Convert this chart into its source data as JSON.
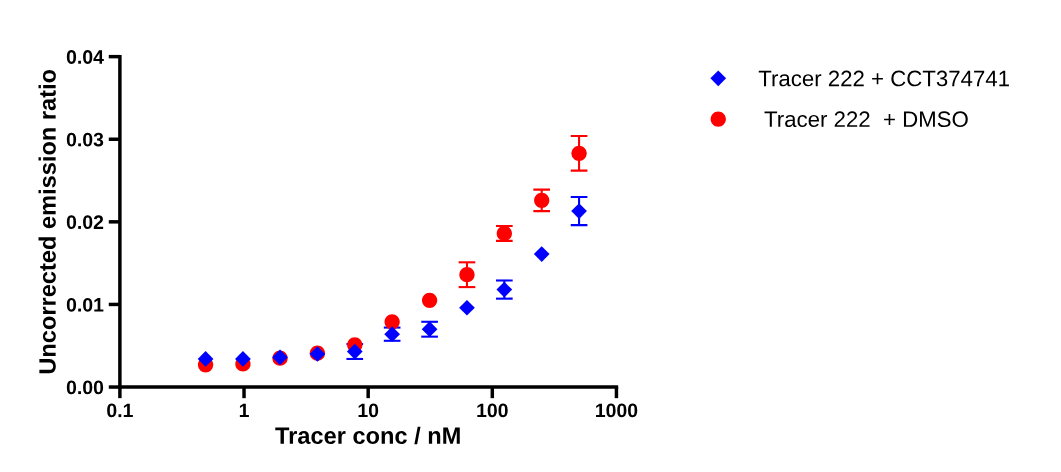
{
  "chart_data": {
    "type": "scatter",
    "xlabel": "Tracer conc / nM",
    "ylabel": "Uncorrected emission ratio",
    "log": "x",
    "x": [
      0.49,
      0.98,
      1.95,
      3.9,
      7.8,
      15.6,
      31.25,
      62.5,
      125,
      250,
      500
    ],
    "series": [
      {
        "name": "Tracer 222 + CCT374741",
        "color": "#0000ff",
        "marker": "diamond",
        "values": [
          0.0034,
          0.0034,
          0.0036,
          0.004,
          0.0043,
          0.0064,
          0.007,
          0.0096,
          0.0118,
          0.0161,
          0.0213
        ],
        "errors": [
          null,
          null,
          null,
          null,
          0.0009,
          0.0008,
          0.0009,
          null,
          0.0011,
          null,
          0.0017
        ]
      },
      {
        "name": " Tracer 222  + DMSO",
        "color": "#ff0000",
        "marker": "circle",
        "values": [
          0.0027,
          0.0028,
          0.0035,
          0.0041,
          0.0051,
          0.0079,
          0.0105,
          0.0136,
          0.0186,
          0.0226,
          0.0283
        ],
        "errors": [
          null,
          null,
          null,
          null,
          null,
          null,
          null,
          0.0015,
          0.0009,
          0.0013,
          0.0021
        ]
      }
    ],
    "xlim": [
      0.1,
      1000
    ],
    "xticks": [
      0.1,
      1,
      10,
      100,
      1000
    ],
    "ylim": [
      0,
      0.04
    ],
    "yticks": [
      {
        "value": 0,
        "label": "0.00"
      },
      {
        "value": 0.01,
        "label": "0.01"
      },
      {
        "value": 0.02,
        "label": "0.02"
      },
      {
        "value": 0.03,
        "label": "0.03"
      },
      {
        "value": 0.04,
        "label": "0.04"
      }
    ],
    "grid": false,
    "legend": "right"
  }
}
